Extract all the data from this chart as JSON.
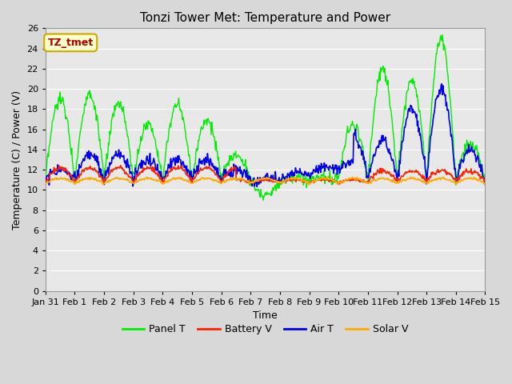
{
  "title": "Tonzi Tower Met: Temperature and Power",
  "xlabel": "Time",
  "ylabel": "Temperature (C) / Power (V)",
  "ylim": [
    0,
    26
  ],
  "yticks": [
    0,
    2,
    4,
    6,
    8,
    10,
    12,
    14,
    16,
    18,
    20,
    22,
    24,
    26
  ],
  "xtick_labels": [
    "Jan 31",
    "Feb 1",
    "Feb 2",
    "Feb 3",
    "Feb 4",
    "Feb 5",
    "Feb 6",
    "Feb 7",
    "Feb 8",
    "Feb 9",
    "Feb 10",
    "Feb 11",
    "Feb 12",
    "Feb 13",
    "Feb 14",
    "Feb 15"
  ],
  "legend_entries": [
    "Panel T",
    "Battery V",
    "Air T",
    "Solar V"
  ],
  "legend_colors": [
    "#00ee00",
    "#ff2200",
    "#0000ee",
    "#ffaa00"
  ],
  "watermark_text": "TZ_tmet",
  "watermark_color": "#aa0000",
  "watermark_bg": "#ffffcc",
  "watermark_edge": "#ccaa00",
  "bg_color": "#d8d8d8",
  "plot_bg": "#e8e8e8",
  "grid_color": "#ffffff",
  "title_fontsize": 11,
  "axis_fontsize": 9,
  "tick_fontsize": 8
}
